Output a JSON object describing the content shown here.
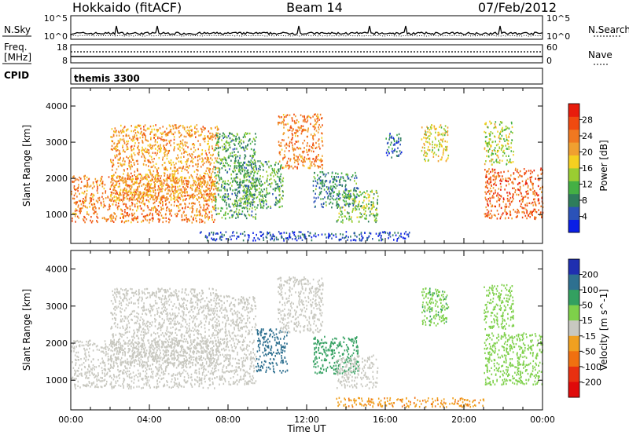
{
  "header": {
    "station": "Hokkaido (fitACF)",
    "beam": "Beam 14",
    "date": "07/Feb/2012"
  },
  "noise_panel": {
    "left_label": "N.Sky",
    "right_label": "N.Search",
    "left_ticks": [
      "10^5",
      "10^0"
    ],
    "right_ticks": [
      "10^5",
      "10^0"
    ]
  },
  "freq_panel": {
    "left_label_line1": "Freq.",
    "left_label_line2": "[MHz]",
    "right_label": "Nave",
    "left_ticks": [
      "18",
      "8"
    ],
    "right_ticks": [
      "60",
      "0"
    ]
  },
  "cpid_panel": {
    "left_label": "CPID",
    "mode_text": "themis 3300"
  },
  "chart_data": [
    {
      "type": "heatmap",
      "quantity": "Power",
      "ylabel": "Slant Range [km]",
      "colorbar_label": "Power [dB]",
      "xlim": [
        "00:00",
        "24:00"
      ],
      "ylim": [
        200,
        4500
      ],
      "y_ticks": [
        "1000",
        "2000",
        "3000",
        "4000"
      ],
      "colorbar_ticks": [
        "4",
        "8",
        "12",
        "16",
        "20",
        "24",
        "28"
      ],
      "colorbar_colors": [
        "#0a1ee6",
        "#2b52b8",
        "#2e7d5c",
        "#44b044",
        "#9acd32",
        "#f5d020",
        "#f0a030",
        "#f07820",
        "#f04a10",
        "#e81c0c"
      ],
      "regions": [
        {
          "t0": 0.0,
          "t1": 7.3,
          "r0": 800,
          "r1": 2100,
          "level": 24
        },
        {
          "t0": 2.0,
          "t1": 7.5,
          "r0": 1400,
          "r1": 3500,
          "level": 22
        },
        {
          "t0": 7.3,
          "t1": 9.4,
          "r0": 900,
          "r1": 3300,
          "level": 12
        },
        {
          "t0": 8.3,
          "t1": 10.8,
          "r0": 1200,
          "r1": 2500,
          "level": 12
        },
        {
          "t0": 10.5,
          "t1": 12.8,
          "r0": 2300,
          "r1": 3800,
          "level": 24
        },
        {
          "t0": 12.3,
          "t1": 14.6,
          "r0": 1200,
          "r1": 2200,
          "level": 10
        },
        {
          "t0": 13.5,
          "t1": 15.6,
          "r0": 800,
          "r1": 1700,
          "level": 14
        },
        {
          "t0": 16.0,
          "t1": 16.8,
          "r0": 2600,
          "r1": 3300,
          "level": 8
        },
        {
          "t0": 17.8,
          "t1": 19.2,
          "r0": 2500,
          "r1": 3500,
          "level": 18
        },
        {
          "t0": 21.0,
          "t1": 24.0,
          "r0": 900,
          "r1": 2300,
          "level": 26
        },
        {
          "t0": 21.0,
          "t1": 22.5,
          "r0": 2400,
          "r1": 3600,
          "level": 16
        },
        {
          "t0": 6.3,
          "t1": 17.2,
          "r0": 300,
          "r1": 550,
          "level": 6
        }
      ]
    },
    {
      "type": "heatmap",
      "quantity": "Velocity",
      "ylabel": "Slant Range [km]",
      "colorbar_label": "Velocity [m s^-1]",
      "xlabel": "Time UT",
      "xlim": [
        "00:00",
        "24:00"
      ],
      "ylim": [
        200,
        4500
      ],
      "x_ticks": [
        "00:00",
        "04:00",
        "08:00",
        "12:00",
        "16:00",
        "20:00",
        "00:00"
      ],
      "y_ticks": [
        "1000",
        "2000",
        "3000",
        "4000"
      ],
      "colorbar_ticks": [
        "200",
        "100",
        "50",
        "15",
        "-15",
        "-50",
        "-100",
        "-200"
      ],
      "colorbar_colors": [
        "#1f2fb0",
        "#2e7090",
        "#33a060",
        "#7ed04a",
        "#c8c8c0",
        "#f0a020",
        "#f07010",
        "#e83010",
        "#e00a0a"
      ],
      "regions": [
        {
          "t0": 0.0,
          "t1": 7.3,
          "r0": 800,
          "r1": 2100,
          "level": 0
        },
        {
          "t0": 2.0,
          "t1": 7.5,
          "r0": 1400,
          "r1": 3500,
          "level": 0
        },
        {
          "t0": 7.3,
          "t1": 9.4,
          "r0": 900,
          "r1": 3300,
          "level": 0
        },
        {
          "t0": 9.4,
          "t1": 11.0,
          "r0": 1200,
          "r1": 2400,
          "level": 120
        },
        {
          "t0": 10.5,
          "t1": 12.8,
          "r0": 2300,
          "r1": 3800,
          "level": 0
        },
        {
          "t0": 12.3,
          "t1": 14.6,
          "r0": 1200,
          "r1": 2200,
          "level": 80
        },
        {
          "t0": 13.5,
          "t1": 15.6,
          "r0": 800,
          "r1": 1700,
          "level": 0
        },
        {
          "t0": 17.8,
          "t1": 19.2,
          "r0": 2500,
          "r1": 3500,
          "level": 40
        },
        {
          "t0": 21.0,
          "t1": 24.0,
          "r0": 900,
          "r1": 2300,
          "level": 30
        },
        {
          "t0": 21.0,
          "t1": 22.5,
          "r0": 2400,
          "r1": 3600,
          "level": 30
        },
        {
          "t0": 13.5,
          "t1": 21.0,
          "r0": 300,
          "r1": 550,
          "level": -40
        }
      ]
    }
  ]
}
